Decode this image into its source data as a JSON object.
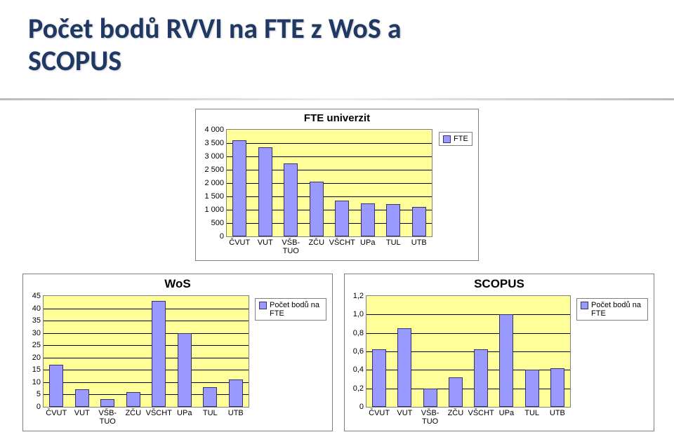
{
  "title_line1": "Počet bodů RVVI na FTE z WoS a",
  "title_line2": "SCOPUS",
  "top_chart": {
    "type": "bar",
    "title": "FTE univerzit",
    "title_fontsize": 15,
    "categories": [
      "ČVUT",
      "VUT",
      "VŠB-\nTUO",
      "ZČU",
      "VŠCHT",
      "UPa",
      "TUL",
      "UTB"
    ],
    "values": [
      3600,
      3350,
      2750,
      2050,
      1350,
      1250,
      1200,
      1100
    ],
    "legend_label": "FTE",
    "ylim": [
      0,
      4000
    ],
    "ytick_step": 500,
    "y_format": "space_thousands",
    "bar_fill": "#9999FF",
    "bar_border": "#333366",
    "plot_background": "#FFFF99",
    "grid_color": "#000000",
    "chart_border": "#808080"
  },
  "wos_chart": {
    "type": "bar",
    "title": "WoS",
    "title_fontsize": 17,
    "categories": [
      "ČVUT",
      "VUT",
      "VŠB-\nTUO",
      "ZČU",
      "VŠCHT",
      "UPa",
      "TUL",
      "UTB"
    ],
    "values": [
      17,
      7,
      3,
      6,
      43,
      30,
      8,
      11
    ],
    "legend_label": "Počet bodů na FTE",
    "ylim": [
      0,
      45
    ],
    "ytick_step": 5,
    "y_format": "int",
    "bar_fill": "#9999FF",
    "bar_border": "#333366",
    "plot_background": "#FFFF99",
    "grid_color": "#000000",
    "chart_border": "#808080"
  },
  "scopus_chart": {
    "type": "bar",
    "title": "SCOPUS",
    "title_fontsize": 17,
    "categories": [
      "ČVUT",
      "VUT",
      "VŠB-\nTUO",
      "ZČU",
      "VŠCHT",
      "UPa",
      "TUL",
      "UTB"
    ],
    "values": [
      0.62,
      0.85,
      0.2,
      0.32,
      0.62,
      1.0,
      0.4,
      0.42
    ],
    "legend_label": "Počet bodů na FTE",
    "ylim": [
      0,
      1.2
    ],
    "ytick_step": 0.2,
    "y_format": "dec1_comma",
    "bar_fill": "#9999FF",
    "bar_border": "#333366",
    "plot_background": "#FFFF99",
    "grid_color": "#000000",
    "chart_border": "#808080"
  }
}
